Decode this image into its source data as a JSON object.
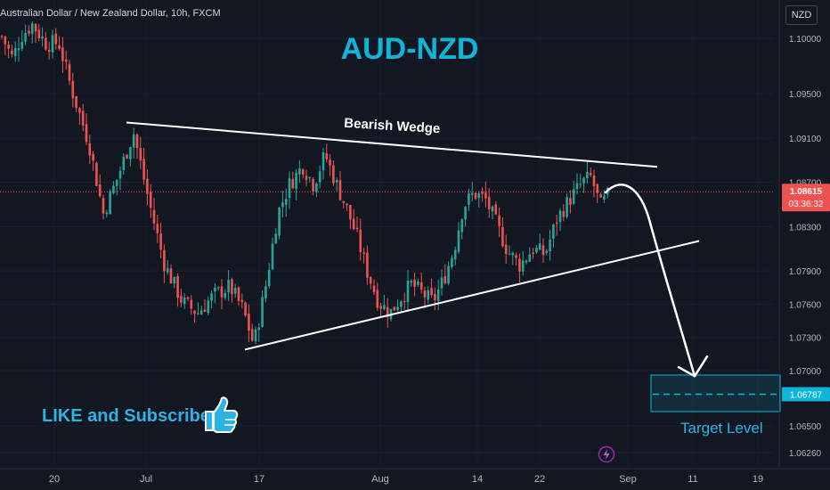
{
  "header": {
    "symbol_text": "Australian Dollar / New Zealand Dollar, 10h, FXCM",
    "currency_button": "NZD"
  },
  "overlay": {
    "title": "AUD-NZD",
    "wedge_label": "Bearish Wedge",
    "like_text": "LIKE and Subscribe",
    "target_text": "Target Level",
    "thumb_icon": "thumbs-up-icon",
    "bolt_icon": "lightning-icon"
  },
  "price_scale": {
    "ticks": [
      "1.10000",
      "1.09500",
      "1.09100",
      "1.08700",
      "1.08300",
      "1.07900",
      "1.07600",
      "1.07300",
      "1.07000",
      "1.06500",
      "1.06260"
    ],
    "last_price": "1.08615",
    "countdown": "03:36:32",
    "target_price": "1.06787"
  },
  "time_scale": {
    "ticks": [
      "20",
      "Jul",
      "17",
      "Aug",
      "14",
      "22",
      "Sep",
      "11",
      "19"
    ]
  },
  "colors": {
    "background": "#131722",
    "bull": "#26a69a",
    "bear": "#ef5350",
    "accent": "#0fb5d8",
    "lines": "#ffffff"
  },
  "chart_data": {
    "type": "candlestick",
    "ylim": [
      1.0626,
      1.1015
    ],
    "price_path": [
      {
        "x": 0,
        "y": 1.1005
      },
      {
        "x": 14,
        "y": 1.0982
      },
      {
        "x": 24,
        "y": 1.1002
      },
      {
        "x": 36,
        "y": 1.1013
      },
      {
        "x": 52,
        "y": 1.0995
      },
      {
        "x": 66,
        "y": 1.0996
      },
      {
        "x": 80,
        "y": 1.0955
      },
      {
        "x": 100,
        "y": 1.0905
      },
      {
        "x": 116,
        "y": 1.0842
      },
      {
        "x": 130,
        "y": 1.087
      },
      {
        "x": 150,
        "y": 1.0915
      },
      {
        "x": 168,
        "y": 1.085
      },
      {
        "x": 185,
        "y": 1.0795
      },
      {
        "x": 205,
        "y": 1.0762
      },
      {
        "x": 222,
        "y": 1.0752
      },
      {
        "x": 240,
        "y": 1.0768
      },
      {
        "x": 258,
        "y": 1.0776
      },
      {
        "x": 273,
        "y": 1.0755
      },
      {
        "x": 285,
        "y": 1.0723
      },
      {
        "x": 298,
        "y": 1.0775
      },
      {
        "x": 312,
        "y": 1.0842
      },
      {
        "x": 325,
        "y": 1.0868
      },
      {
        "x": 340,
        "y": 1.0885
      },
      {
        "x": 352,
        "y": 1.0868
      },
      {
        "x": 365,
        "y": 1.0895
      },
      {
        "x": 378,
        "y": 1.0868
      },
      {
        "x": 390,
        "y": 1.0845
      },
      {
        "x": 402,
        "y": 1.0818
      },
      {
        "x": 412,
        "y": 1.079
      },
      {
        "x": 425,
        "y": 1.0762
      },
      {
        "x": 438,
        "y": 1.0752
      },
      {
        "x": 450,
        "y": 1.0766
      },
      {
        "x": 462,
        "y": 1.0778
      },
      {
        "x": 474,
        "y": 1.077
      },
      {
        "x": 486,
        "y": 1.0762
      },
      {
        "x": 498,
        "y": 1.0782
      },
      {
        "x": 510,
        "y": 1.081
      },
      {
        "x": 520,
        "y": 1.0848
      },
      {
        "x": 532,
        "y": 1.086
      },
      {
        "x": 545,
        "y": 1.0855
      },
      {
        "x": 556,
        "y": 1.0835
      },
      {
        "x": 570,
        "y": 1.0808
      },
      {
        "x": 584,
        "y": 1.0795
      },
      {
        "x": 598,
        "y": 1.081
      },
      {
        "x": 612,
        "y": 1.0805
      },
      {
        "x": 626,
        "y": 1.0838
      },
      {
        "x": 640,
        "y": 1.0855
      },
      {
        "x": 654,
        "y": 1.087
      },
      {
        "x": 664,
        "y": 1.0875
      },
      {
        "x": 674,
        "y": 1.0848
      },
      {
        "x": 684,
        "y": 1.086
      }
    ],
    "annotations": {
      "upper_trendline": [
        [
          142,
          1.0924
        ],
        [
          738,
          1.0884
        ]
      ],
      "lower_trendline": [
        [
          275,
          1.0719
        ],
        [
          785,
          1.0817
        ]
      ],
      "projection_arrow_end": [
        780,
        1.0695
      ],
      "target_zone": [
        1.0663,
        1.0696
      ]
    }
  }
}
